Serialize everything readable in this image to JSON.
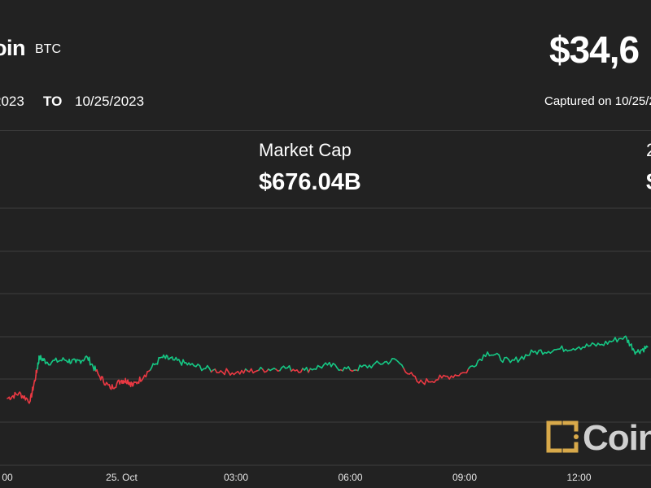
{
  "header": {
    "coin_name": "oin",
    "ticker": "BTC",
    "price": "$34,6",
    "date_from": "2023",
    "date_to_label": "TO",
    "date_to": "10/25/2023",
    "captured": "Captured on 10/25/2"
  },
  "stats": {
    "market_cap_label": "Market Cap",
    "market_cap_value": "$676.04B",
    "stat2_label": "2",
    "stat2_value": "$"
  },
  "logo": {
    "text": "Coin",
    "color": "#d8a94a"
  },
  "colors": {
    "up": "#16c784",
    "down": "#ea3943",
    "background": "#222222",
    "grid": "#3d3d3d"
  },
  "chart_data": {
    "type": "line",
    "xlim": [
      -1,
      13.9
    ],
    "ylim": [
      0,
      1
    ],
    "grid": true,
    "x_ticks": [
      {
        "x": 0,
        "label": "00"
      },
      {
        "x": 1,
        "label": "25. Oct"
      },
      {
        "x": 2,
        "label": "03:00"
      },
      {
        "x": 3,
        "label": "06:00"
      },
      {
        "x": 4,
        "label": "09:00"
      },
      {
        "x": 5,
        "label": "12:00"
      }
    ],
    "x": [
      0,
      0.1,
      0.2,
      0.25,
      0.28,
      0.35,
      0.5,
      0.6,
      0.7,
      0.8,
      0.9,
      1.0,
      1.05,
      1.1,
      1.2,
      1.35,
      1.45,
      1.6,
      1.8,
      2.0,
      2.2,
      2.4,
      2.6,
      2.8,
      3.0,
      3.2,
      3.4,
      3.6,
      3.8,
      4.0,
      4.2,
      4.4,
      4.6,
      4.8,
      5.0,
      5.2,
      5.4,
      5.5,
      5.6
    ],
    "values": [
      0.26,
      0.28,
      0.25,
      0.35,
      0.42,
      0.4,
      0.41,
      0.4,
      0.42,
      0.35,
      0.3,
      0.33,
      0.33,
      0.31,
      0.35,
      0.42,
      0.41,
      0.39,
      0.37,
      0.36,
      0.37,
      0.38,
      0.37,
      0.39,
      0.37,
      0.39,
      0.41,
      0.32,
      0.34,
      0.36,
      0.44,
      0.4,
      0.44,
      0.45,
      0.46,
      0.47,
      0.5,
      0.44,
      0.46
    ],
    "baseline": 0.37
  }
}
